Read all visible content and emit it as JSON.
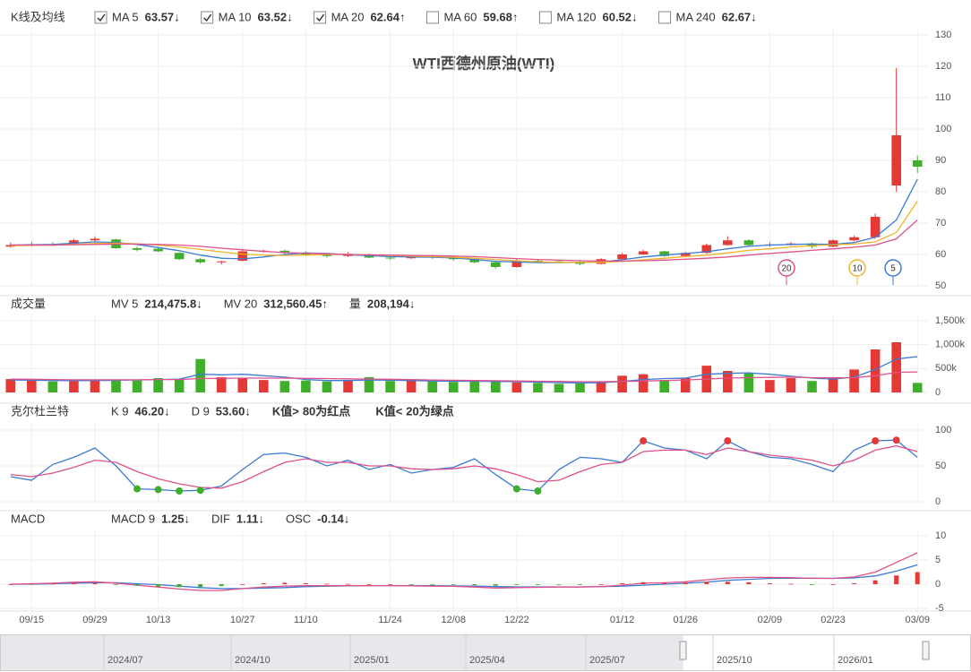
{
  "chart_data": [
    {
      "type": "candlestick",
      "title": "WTI西德州原油(WTI)",
      "legend_title": "K线及均线",
      "categories": [
        null,
        "09/15",
        null,
        null,
        "09/29",
        null,
        null,
        "10/13",
        null,
        null,
        null,
        "10/27",
        null,
        null,
        "11/10",
        null,
        null,
        null,
        "11/24",
        null,
        null,
        "12/08",
        null,
        null,
        "12/22",
        null,
        null,
        null,
        null,
        "01/12",
        null,
        null,
        "01/26",
        null,
        null,
        null,
        "02/09",
        null,
        null,
        "02/23",
        null,
        null,
        null,
        "03/09"
      ],
      "open": [
        62.5,
        63,
        63.3,
        63,
        64.5,
        64.8,
        62,
        61.8,
        60.5,
        58.5,
        57.5,
        58,
        61,
        61.2,
        60.5,
        60,
        59.5,
        60,
        59,
        58.8,
        59.5,
        59,
        58.5,
        57.5,
        56,
        58,
        57.8,
        57.5,
        57,
        58.5,
        60,
        61,
        59.5,
        60.5,
        63,
        64.5,
        63,
        63.2,
        63.5,
        62.5,
        64.5,
        65.5,
        82,
        90
      ],
      "high": [
        63.8,
        63.9,
        64,
        65,
        65.8,
        65,
        62.5,
        62,
        60.8,
        58.9,
        58,
        61.8,
        61.5,
        61.5,
        61,
        60.5,
        60.8,
        60.3,
        59.5,
        59.8,
        59.9,
        59.3,
        58.8,
        57.8,
        58.5,
        58.4,
        58.3,
        57.9,
        58.8,
        60.5,
        61.5,
        61.2,
        60.9,
        63.5,
        65.8,
        64.8,
        63.8,
        64,
        63.8,
        64.8,
        66,
        73,
        119.5,
        91.5
      ],
      "low": [
        62.2,
        62.6,
        62.8,
        62.8,
        64.2,
        61.8,
        61,
        60.8,
        58.2,
        57,
        56.8,
        57.8,
        60.5,
        60.2,
        59.5,
        59,
        59.2,
        58.8,
        58.3,
        58.6,
        58.6,
        58,
        57.2,
        55.5,
        55.8,
        57.4,
        57.2,
        56.6,
        56.8,
        58.2,
        59.8,
        59.2,
        59.3,
        60.2,
        62.8,
        62.5,
        62.4,
        62.8,
        62,
        62.3,
        64.2,
        65,
        80,
        86
      ],
      "close": [
        63,
        63.3,
        62.8,
        64.5,
        65,
        62,
        61.5,
        61,
        58.5,
        57.5,
        57.8,
        61,
        61.2,
        60.5,
        60,
        59.5,
        60.2,
        59,
        58.8,
        59.5,
        59,
        58.5,
        57.5,
        56,
        58,
        57.8,
        57.5,
        57,
        58.5,
        60,
        61,
        59.5,
        60.5,
        63,
        64.5,
        63,
        63.2,
        63.5,
        62.5,
        64.5,
        65.5,
        72,
        98,
        88
      ],
      "up_color": "#e53935",
      "down_color": "#3fae2a",
      "series": [
        {
          "name": "MA 5",
          "color": "#3b7bd4",
          "checked": true,
          "value": 63.57,
          "arrow": "↓",
          "values": [
            63,
            63.1,
            63.2,
            63.6,
            64,
            63.8,
            63.2,
            62.2,
            61.2,
            59.8,
            58.8,
            58.6,
            59.2,
            60,
            60.5,
            60.3,
            59.9,
            59.6,
            59.3,
            59.2,
            59.1,
            58.9,
            58.4,
            57.8,
            57.6,
            57.4,
            57.4,
            57.5,
            57.6,
            58.3,
            59.2,
            59.8,
            60.3,
            60.9,
            61.8,
            62.6,
            63,
            63.2,
            63.3,
            63.2,
            63.8,
            65.5,
            71,
            84
          ]
        },
        {
          "name": "MA 10",
          "color": "#f0b429",
          "checked": true,
          "value": 63.52,
          "arrow": "↓",
          "values": [
            62.8,
            62.9,
            63,
            63.2,
            63.5,
            63.6,
            63.4,
            63,
            62.4,
            61.6,
            60.8,
            60.1,
            59.8,
            59.7,
            59.8,
            60,
            60,
            59.9,
            59.7,
            59.5,
            59.3,
            59.1,
            58.8,
            58.4,
            58,
            57.7,
            57.5,
            57.5,
            57.5,
            57.8,
            58.3,
            58.8,
            59.3,
            59.8,
            60.5,
            61.3,
            61.8,
            62.4,
            62.8,
            63.1,
            63.3,
            64,
            67,
            77
          ]
        },
        {
          "name": "MA 20",
          "color": "#e0508a",
          "checked": true,
          "value": 62.64,
          "arrow": "↑",
          "values": [
            63,
            63,
            63,
            63.1,
            63.2,
            63.3,
            63.3,
            63.2,
            63,
            62.6,
            62,
            61.5,
            61,
            60.6,
            60.4,
            60.2,
            60,
            59.9,
            59.8,
            59.7,
            59.6,
            59.5,
            59.3,
            59,
            58.7,
            58.4,
            58.2,
            58,
            57.9,
            57.9,
            58,
            58.2,
            58.5,
            58.8,
            59.2,
            59.8,
            60.3,
            60.8,
            61.3,
            61.8,
            62.3,
            63,
            65,
            71
          ]
        },
        {
          "name": "MA 60",
          "color": "#59b32b",
          "checked": false,
          "value": 59.68,
          "arrow": "↑"
        },
        {
          "name": "MA 120",
          "color": "#7a4fc9",
          "checked": false,
          "value": 60.52,
          "arrow": "↓"
        },
        {
          "name": "MA 240",
          "color": "#f07a3c",
          "checked": false,
          "value": 62.67,
          "arrow": "↓"
        }
      ],
      "markers": [
        {
          "label": 20,
          "color": "#e0508a"
        },
        {
          "label": 10,
          "color": "#f0b429"
        },
        {
          "label": 5,
          "color": "#3b7bd4"
        }
      ],
      "ylim": [
        50,
        130
      ],
      "yticks": [
        50,
        60,
        70,
        80,
        90,
        100,
        110,
        120,
        130
      ],
      "grid": true
    },
    {
      "type": "volume",
      "legend_title": "成交量",
      "values": [
        280000,
        250000,
        230000,
        240000,
        260000,
        270000,
        250000,
        300000,
        280000,
        700000,
        320000,
        300000,
        260000,
        240000,
        250000,
        230000,
        260000,
        320000,
        240000,
        250000,
        230000,
        220000,
        240000,
        230000,
        210000,
        200000,
        180000,
        190000,
        220000,
        350000,
        380000,
        250000,
        300000,
        560000,
        450000,
        400000,
        260000,
        300000,
        240000,
        320000,
        480000,
        900000,
        1050000,
        200000
      ],
      "series": [
        {
          "name": "MV 5",
          "color": "#3b7bd4",
          "value": 214475.8,
          "label": "214,475.8",
          "arrow": "↓",
          "values": [
            260000,
            255000,
            250000,
            245000,
            250000,
            255000,
            260000,
            270000,
            280000,
            380000,
            370000,
            380000,
            350000,
            320000,
            270000,
            250000,
            250000,
            260000,
            255000,
            250000,
            240000,
            235000,
            235000,
            230000,
            225000,
            215000,
            205000,
            200000,
            205000,
            230000,
            270000,
            290000,
            300000,
            380000,
            400000,
            410000,
            380000,
            340000,
            300000,
            280000,
            320000,
            480000,
            700000,
            750000
          ]
        },
        {
          "name": "MV 20",
          "color": "#e0508a",
          "value": 312560.45,
          "label": "312,560.45",
          "arrow": "↑",
          "values": [
            280000,
            275000,
            270000,
            265000,
            265000,
            265000,
            265000,
            270000,
            270000,
            290000,
            295000,
            300000,
            300000,
            300000,
            295000,
            290000,
            285000,
            280000,
            275000,
            270000,
            260000,
            255000,
            250000,
            245000,
            240000,
            235000,
            230000,
            225000,
            225000,
            230000,
            240000,
            250000,
            260000,
            280000,
            300000,
            310000,
            315000,
            320000,
            310000,
            305000,
            310000,
            350000,
            420000,
            430000
          ]
        },
        {
          "name": "量",
          "color": "#333333",
          "value": 208194,
          "label": "208,194",
          "arrow": "↓"
        }
      ],
      "ylim": [
        0,
        1500000
      ],
      "yticks": [
        0,
        {
          "value": 500000,
          "label": "500k"
        },
        {
          "value": 1000000,
          "label": "1,000k"
        },
        {
          "value": 1500000,
          "label": "1,500k"
        }
      ],
      "grid": true
    },
    {
      "type": "kd",
      "legend_title": "克尔杜兰特",
      "series": [
        {
          "name": "K 9",
          "color": "#3b7bd4",
          "value": 46.2,
          "label": "46.20",
          "arrow": "↓",
          "values": [
            35,
            30,
            52,
            62,
            75,
            50,
            18,
            17,
            15,
            16,
            22,
            45,
            66,
            68,
            62,
            50,
            58,
            45,
            52,
            40,
            45,
            48,
            60,
            38,
            18,
            15,
            45,
            62,
            60,
            55,
            85,
            75,
            72,
            60,
            85,
            70,
            62,
            60,
            52,
            42,
            72,
            85,
            86,
            62
          ]
        },
        {
          "name": "D 9",
          "color": "#e0508a",
          "value": 53.6,
          "label": "53.60",
          "arrow": "↓",
          "values": [
            38,
            35,
            40,
            48,
            58,
            55,
            42,
            32,
            25,
            20,
            19,
            28,
            42,
            55,
            60,
            55,
            55,
            50,
            50,
            46,
            45,
            46,
            50,
            46,
            38,
            28,
            30,
            42,
            52,
            55,
            70,
            72,
            72,
            66,
            75,
            70,
            65,
            62,
            58,
            50,
            58,
            72,
            78,
            70
          ]
        }
      ],
      "rules": [
        {
          "prefix": "K值>",
          "value": 80,
          "suffix": "为红点",
          "color": "#e53935"
        },
        {
          "prefix": "K值<",
          "value": 20,
          "suffix": "为绿点",
          "color": "#3fae2a"
        }
      ],
      "ylim": [
        0,
        100
      ],
      "yticks": [
        0,
        50,
        100
      ],
      "grid": true
    },
    {
      "type": "macd",
      "legend_title": "MACD",
      "series": [
        {
          "name": "MACD 9",
          "color": "#3b7bd4",
          "value": 1.25,
          "arrow": "↓",
          "values": [
            0,
            0,
            0.1,
            0.2,
            0.3,
            0.3,
            0.1,
            -0.1,
            -0.4,
            -0.7,
            -0.9,
            -0.9,
            -0.8,
            -0.7,
            -0.5,
            -0.4,
            -0.35,
            -0.3,
            -0.3,
            -0.3,
            -0.3,
            -0.35,
            -0.4,
            -0.5,
            -0.55,
            -0.55,
            -0.55,
            -0.55,
            -0.5,
            -0.4,
            -0.2,
            0,
            0.2,
            0.45,
            0.8,
            1,
            1.2,
            1.25,
            1.25,
            1.2,
            1.3,
            1.7,
            2.7,
            4
          ]
        },
        {
          "name": "DIF",
          "color": "#e0508a",
          "value": 1.11,
          "arrow": "↓",
          "values": [
            0,
            0.1,
            0.2,
            0.4,
            0.5,
            0.2,
            -0.2,
            -0.6,
            -1,
            -1.3,
            -1.3,
            -0.9,
            -0.6,
            -0.4,
            -0.3,
            -0.3,
            -0.3,
            -0.3,
            -0.3,
            -0.35,
            -0.4,
            -0.45,
            -0.6,
            -0.8,
            -0.7,
            -0.65,
            -0.6,
            -0.6,
            -0.5,
            -0.2,
            0.2,
            0.3,
            0.5,
            0.9,
            1.3,
            1.4,
            1.4,
            1.35,
            1.2,
            1.2,
            1.5,
            2.5,
            4.5,
            6.5
          ]
        },
        {
          "name": "OSC",
          "color": "#333333",
          "value": -0.14,
          "arrow": "↓",
          "style": "bar",
          "values": [
            0,
            0.1,
            0.1,
            0.2,
            0.2,
            -0.1,
            -0.3,
            -0.5,
            -0.6,
            -0.6,
            -0.4,
            0,
            0.2,
            0.3,
            0.2,
            0.1,
            0.05,
            0,
            0,
            -0.05,
            -0.1,
            -0.1,
            -0.2,
            -0.3,
            -0.15,
            -0.1,
            -0.05,
            -0.05,
            0,
            0.2,
            0.4,
            0.3,
            0.3,
            0.45,
            0.5,
            0.4,
            0.2,
            0.1,
            -0.05,
            0,
            0.2,
            0.8,
            1.8,
            2.5
          ]
        }
      ],
      "ylim": [
        -5,
        10
      ],
      "yticks": [
        -5,
        0,
        5,
        10
      ],
      "grid": true
    }
  ],
  "navigator": {
    "labels": [
      "2024/07",
      "2024/10",
      "2025/01",
      "2025/04",
      "2025/07",
      "2025/10",
      "2026/01"
    ]
  }
}
